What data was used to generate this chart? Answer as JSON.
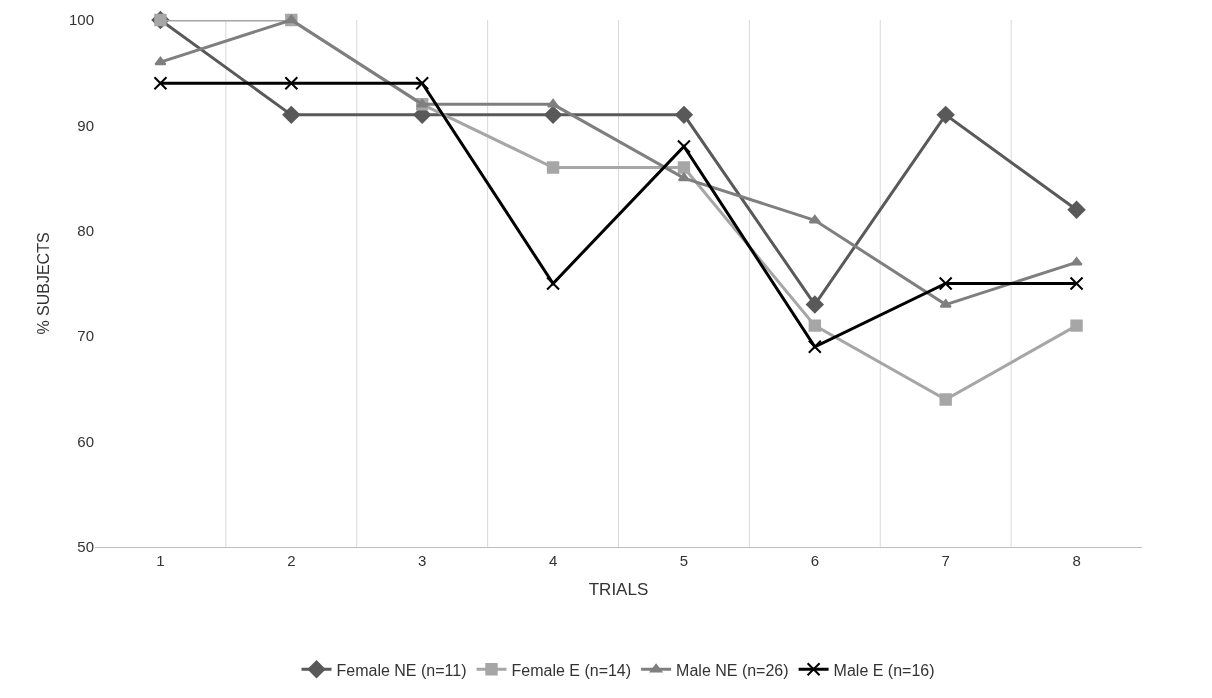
{
  "chart_data": {
    "type": "line",
    "xlabel": "TRIALS",
    "ylabel": "% SUBJECTS",
    "categories": [
      "1",
      "2",
      "3",
      "4",
      "5",
      "6",
      "7",
      "8"
    ],
    "series": [
      {
        "name": "Female NE (n=11)",
        "color": "#595959",
        "marker": "diamond",
        "values": [
          100,
          91,
          91,
          91,
          91,
          73,
          91,
          82
        ]
      },
      {
        "name": "Female E (n=14)",
        "color": "#a6a6a6",
        "marker": "square",
        "values": [
          100,
          100,
          92,
          86,
          86,
          71,
          64,
          71
        ]
      },
      {
        "name": "Male NE (n=26)",
        "color": "#7f7f7f",
        "marker": "triangle",
        "values": [
          96,
          100,
          92,
          92,
          85,
          81,
          73,
          77
        ]
      },
      {
        "name": "Male E (n=16)",
        "color": "#000000",
        "marker": "cross",
        "values": [
          94,
          94,
          94,
          75,
          88,
          69,
          75,
          75
        ]
      }
    ],
    "ylim": [
      50,
      100
    ],
    "yticks": [
      50,
      60,
      70,
      80,
      90,
      100
    ],
    "grid": "x",
    "legend": "bottom",
    "line_style": "solid"
  }
}
